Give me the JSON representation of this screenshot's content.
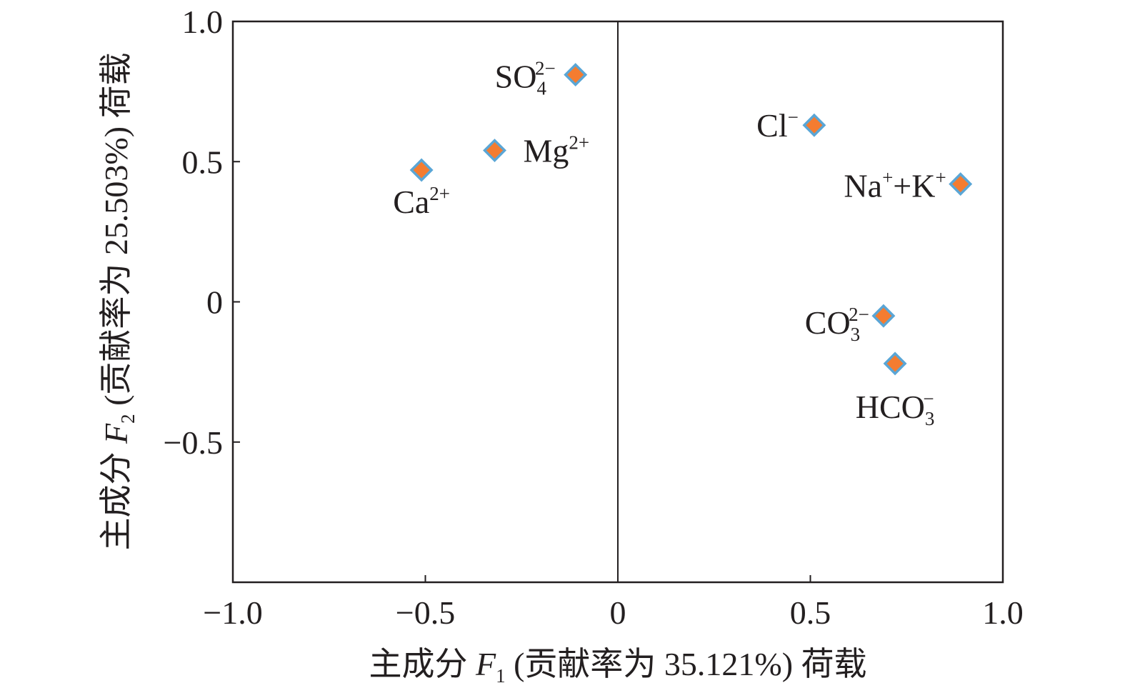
{
  "chart_data": {
    "type": "scatter",
    "xlabel": {
      "prefix": "主成分 ",
      "var": "F",
      "sub": "1",
      "suffix": " (贡献率为 35.121%) 荷载"
    },
    "ylabel": {
      "prefix": "主成分 ",
      "var": "F",
      "sub": "2",
      "suffix": " (贡献率为 25.503%) 荷载"
    },
    "xlim": [
      -1.0,
      1.0
    ],
    "ylim": [
      -1.0,
      1.0
    ],
    "x_ticks": [
      -1.0,
      -0.5,
      0,
      0.5,
      1.0
    ],
    "x_tick_labels": [
      "−1.0",
      "−0.5",
      "0",
      "0.5",
      "1.0"
    ],
    "y_ticks": [
      -0.5,
      0,
      0.5,
      1.0
    ],
    "y_tick_labels": [
      "−0.5",
      "0",
      "0.5",
      "1.0"
    ],
    "reference_line_x": 0,
    "grid": false,
    "legend": "none",
    "marker": {
      "shape": "diamond",
      "fill": "#f47c30",
      "stroke": "#5aa6d6"
    },
    "points": [
      {
        "label": "SO₄²⁻",
        "x": -0.11,
        "y": 0.81
      },
      {
        "label": "Mg²⁺",
        "x": -0.32,
        "y": 0.54
      },
      {
        "label": "Ca²⁺",
        "x": -0.51,
        "y": 0.47
      },
      {
        "label": "Cl⁻",
        "x": 0.51,
        "y": 0.63
      },
      {
        "label": "Na⁺+K⁺",
        "x": 0.89,
        "y": 0.42
      },
      {
        "label": "CO₃²⁻",
        "x": 0.69,
        "y": -0.05
      },
      {
        "label": "HCO₃⁻",
        "x": 0.72,
        "y": -0.22
      }
    ]
  }
}
